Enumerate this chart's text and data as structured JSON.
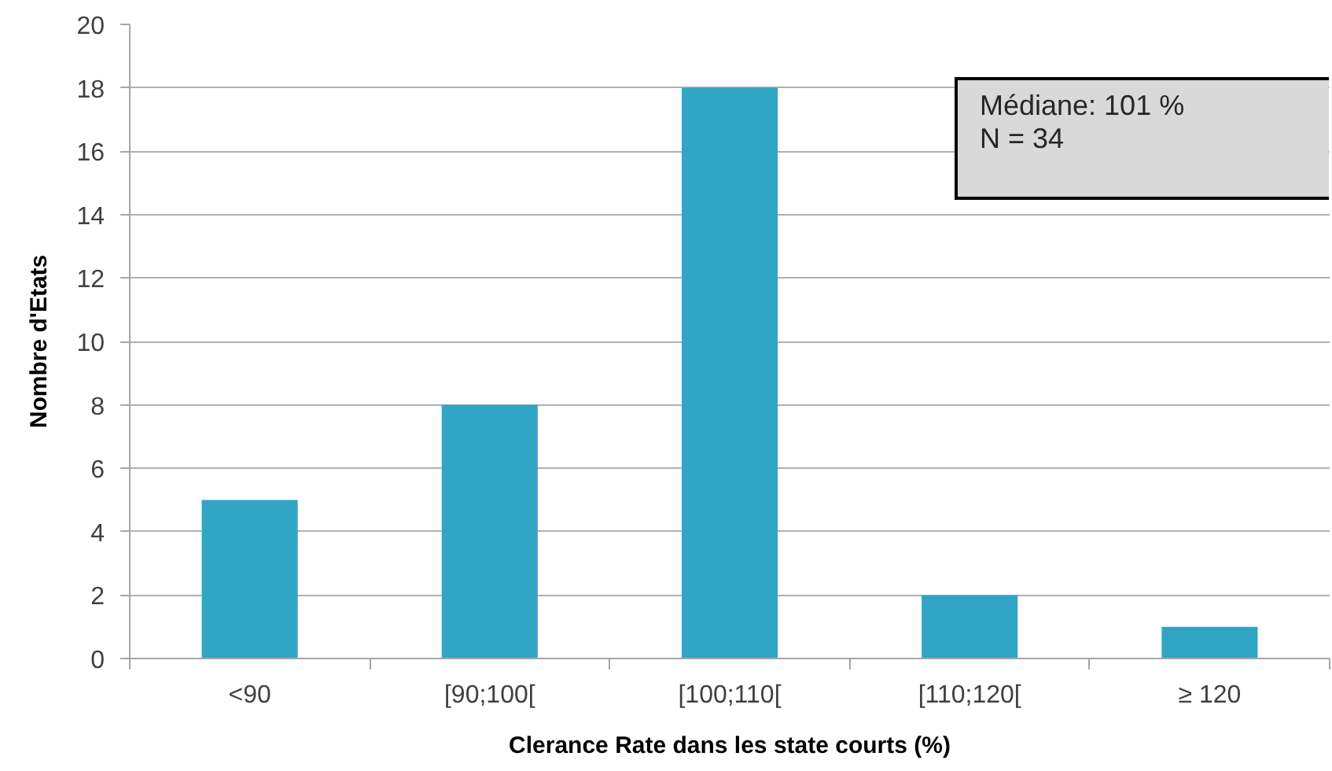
{
  "chart_data": {
    "type": "bar",
    "categories": [
      "<90",
      "[90;100[",
      "[100;110[",
      "[110;120[",
      "≥ 120"
    ],
    "values": [
      5,
      8,
      18,
      2,
      1
    ],
    "color": "#31a5c6",
    "xlabel": "Clerance Rate dans les state courts (%)",
    "ylabel": "Nombre d'Etats",
    "ylim": [
      0,
      20
    ],
    "yticks": [
      0,
      2,
      4,
      6,
      8,
      10,
      12,
      14,
      16,
      18,
      20
    ],
    "grid": "y",
    "annotations": [
      "Médiane: 101 %",
      "N = 34"
    ]
  }
}
